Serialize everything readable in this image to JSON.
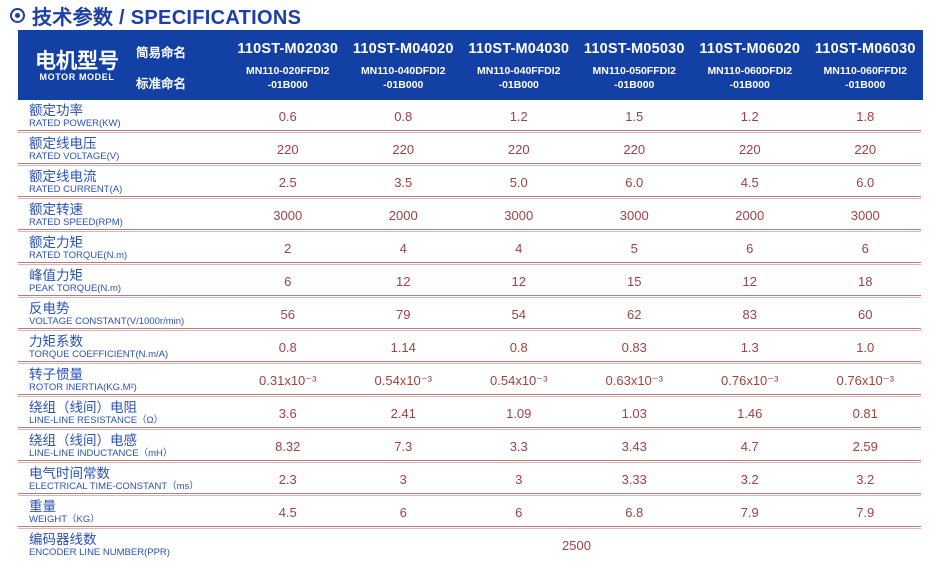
{
  "title": {
    "text": "技术参数 / SPECIFICATIONS"
  },
  "colors": {
    "header_bg": "#1240a4",
    "title_blue": "#1e3ea8",
    "label_blue": "#2a52b4",
    "value_red": "#9c4343",
    "divider_red": "#b97c7c"
  },
  "header": {
    "model_cn": "电机型号",
    "model_en": "MOTOR MODEL",
    "simple_name_label": "简易命名",
    "standard_name_label": "标准命名",
    "columns": [
      {
        "model": "110ST-M02030",
        "standard": "MN110-020FFDI2\n-01B000"
      },
      {
        "model": "110ST-M04020",
        "standard": "MN110-040DFDI2\n-01B000"
      },
      {
        "model": "110ST-M04030",
        "standard": "MN110-040FFDI2\n-01B000"
      },
      {
        "model": "110ST-M05030",
        "standard": "MN110-050FFDI2\n-01B000"
      },
      {
        "model": "110ST-M06020",
        "standard": "MN110-060DFDI2\n-01B000"
      },
      {
        "model": "110ST-M06030",
        "standard": "MN110-060FFDI2\n-01B000"
      }
    ]
  },
  "rows": [
    {
      "cn": "额定功率",
      "en": "RATED POWER(KW)",
      "values": [
        "0.6",
        "0.8",
        "1.2",
        "1.5",
        "1.2",
        "1.8"
      ]
    },
    {
      "cn": "额定线电压",
      "en": "RATED VOLTAGE(V)",
      "values": [
        "220",
        "220",
        "220",
        "220",
        "220",
        "220"
      ]
    },
    {
      "cn": "额定线电流",
      "en": "RATED CURRENT(A)",
      "values": [
        "2.5",
        "3.5",
        "5.0",
        "6.0",
        "4.5",
        "6.0"
      ]
    },
    {
      "cn": "额定转速",
      "en": "RATED SPEED(RPM)",
      "values": [
        "3000",
        "2000",
        "3000",
        "3000",
        "2000",
        "3000"
      ]
    },
    {
      "cn": "额定力矩",
      "en": "RATED TORQUE(N.m)",
      "values": [
        "2",
        "4",
        "4",
        "5",
        "6",
        "6"
      ]
    },
    {
      "cn": "峰值力矩",
      "en": "PEAK TORQUE(N.m)",
      "values": [
        "6",
        "12",
        "12",
        "15",
        "12",
        "18"
      ]
    },
    {
      "cn": "反电势",
      "en": "VOLTAGE CONSTANT(V/1000r/min)",
      "values": [
        "56",
        "79",
        "54",
        "62",
        "83",
        "60"
      ]
    },
    {
      "cn": "力矩系数",
      "en": "TORQUE COEFFICIENT(N.m/A)",
      "values": [
        "0.8",
        "1.14",
        "0.8",
        "0.83",
        "1.3",
        "1.0"
      ]
    },
    {
      "cn": "转子惯量",
      "en": "ROTOR INERTIA(KG.M²)",
      "values": [
        "0.31x10⁻³",
        "0.54x10⁻³",
        "0.54x10⁻³",
        "0.63x10⁻³",
        "0.76x10⁻³",
        "0.76x10⁻³"
      ]
    },
    {
      "cn": "绕组（线间）电阻",
      "en": "LINE-LINE RESISTANCE（Ω）",
      "values": [
        "3.6",
        "2.41",
        "1.09",
        "1.03",
        "1.46",
        "0.81"
      ]
    },
    {
      "cn": "绕组（线间）电感",
      "en": "LINE-LINE INDUCTANCE（mH）",
      "values": [
        "8.32",
        "7.3",
        "3.3",
        "3.43",
        "4.7",
        "2.59"
      ]
    },
    {
      "cn": "电气时间常数",
      "en": "ELECTRICAL TIME-CONSTANT（ms）",
      "values": [
        "2.3",
        "3",
        "3",
        "3.33",
        "3.2",
        "3.2"
      ]
    },
    {
      "cn": "重量",
      "en": "WEIGHT（KG）",
      "values": [
        "4.5",
        "6",
        "6",
        "6.8",
        "7.9",
        "7.9"
      ]
    },
    {
      "cn": "编码器线数",
      "en": "ENCODER LINE NUMBER(PPR)",
      "merged_value": "2500"
    }
  ]
}
